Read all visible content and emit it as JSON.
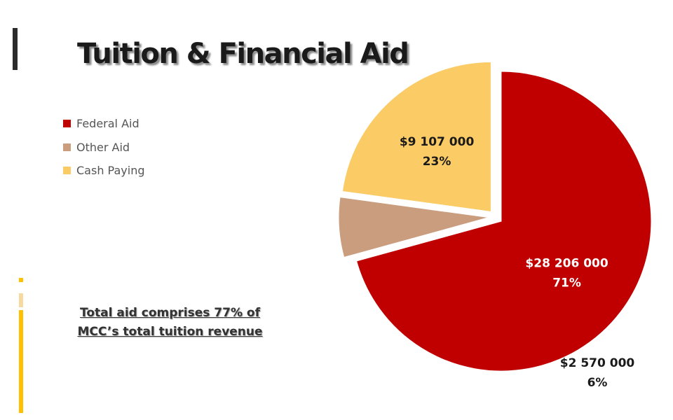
{
  "title": "Tuition & Financial Aid",
  "note": {
    "line1": "Total aid comprises 77% of",
    "line2": "MCC’s total tuition revenue"
  },
  "colors": {
    "federal": "#C00000",
    "other": "#C99D7E",
    "cash": "#FBCB65",
    "accent": "#FFC000",
    "accent_light": "#F7D9A0",
    "accent_dark": "#2B2B2B"
  },
  "chart_data": {
    "type": "pie",
    "title": "",
    "legend_position": "left",
    "exploded": true,
    "slices": [
      {
        "name": "Federal Aid",
        "value": 28206000,
        "value_label": "$28 206 000",
        "percent_label": "71%",
        "color": "#C00000"
      },
      {
        "name": "Other Aid",
        "value": 2570000,
        "value_label": "$2 570 000",
        "percent_label": "6%",
        "color": "#C99D7E"
      },
      {
        "name": "Cash Paying",
        "value": 9107000,
        "value_label": "$9 107 000",
        "percent_label": "23%",
        "color": "#FBCB65"
      }
    ]
  }
}
